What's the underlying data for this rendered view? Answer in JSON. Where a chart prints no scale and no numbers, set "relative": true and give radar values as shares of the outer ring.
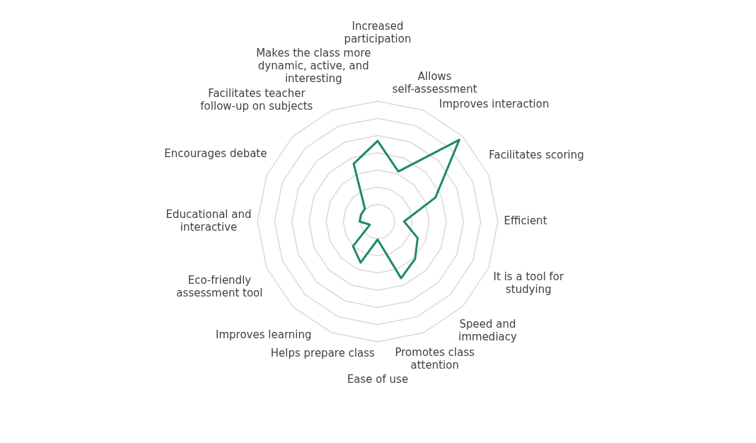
{
  "chart_data": {
    "type": "radar",
    "relative": true,
    "grid": true,
    "legend": false,
    "marker": "none",
    "categories": [
      "Increased participation",
      "Allows self-assessment",
      "Improves interaction",
      "Facilitates scoring",
      "Efficient",
      "It is a tool for studying",
      "Speed and immediacy",
      "Promotes class attention",
      "Ease of use",
      "Helps prepare class",
      "Improves learning",
      "Eco-friendly assessment tool",
      "Educational and interactive",
      "Encourages debate",
      "Facilitates teacher follow-up on subjects",
      "Makes the class more dynamic, active, and interesting"
    ],
    "series": [
      {
        "color": "#1f8a66",
        "values": [
          0.67,
          0.45,
          0.96,
          0.52,
          0.22,
          0.36,
          0.44,
          0.51,
          0.15,
          0.37,
          0.29,
          0.07,
          0.15,
          0.15,
          0.15,
          0.52
        ]
      }
    ]
  }
}
